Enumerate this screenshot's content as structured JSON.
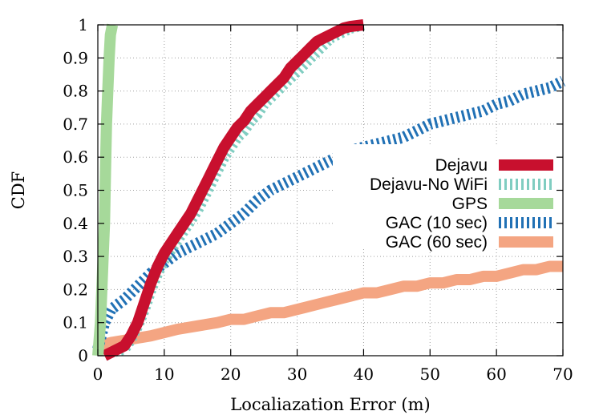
{
  "chart_data": {
    "type": "line",
    "xlabel": "Localiazation Error (m)",
    "ylabel": "CDF",
    "xlim": [
      0,
      70
    ],
    "ylim": [
      0,
      1
    ],
    "xticks": [
      "0",
      "10",
      "20",
      "30",
      "40",
      "50",
      "60",
      "70"
    ],
    "yticks": [
      "0",
      "0.1",
      "0.2",
      "0.3",
      "0.4",
      "0.5",
      "0.6",
      "0.7",
      "0.8",
      "0.9",
      "1"
    ],
    "grid": true,
    "legend_position": "right",
    "series": [
      {
        "name": "Dejavu",
        "color": "#c8102e",
        "style": "solid-thick",
        "points": [
          [
            1,
            0
          ],
          [
            2,
            0.01
          ],
          [
            4,
            0.03
          ],
          [
            5,
            0.06
          ],
          [
            6,
            0.1
          ],
          [
            7,
            0.16
          ],
          [
            8,
            0.22
          ],
          [
            9,
            0.27
          ],
          [
            10,
            0.31
          ],
          [
            11,
            0.34
          ],
          [
            12,
            0.37
          ],
          [
            13,
            0.4
          ],
          [
            14,
            0.43
          ],
          [
            15,
            0.47
          ],
          [
            16,
            0.51
          ],
          [
            17,
            0.55
          ],
          [
            18,
            0.59
          ],
          [
            19,
            0.63
          ],
          [
            20,
            0.66
          ],
          [
            21,
            0.69
          ],
          [
            22,
            0.71
          ],
          [
            23,
            0.74
          ],
          [
            24,
            0.76
          ],
          [
            25,
            0.78
          ],
          [
            26,
            0.8
          ],
          [
            27,
            0.82
          ],
          [
            28,
            0.84
          ],
          [
            29,
            0.87
          ],
          [
            30,
            0.89
          ],
          [
            31,
            0.91
          ],
          [
            32,
            0.93
          ],
          [
            33,
            0.95
          ],
          [
            34,
            0.96
          ],
          [
            35,
            0.97
          ],
          [
            36,
            0.98
          ],
          [
            37,
            0.99
          ],
          [
            38,
            0.995
          ],
          [
            40,
            1
          ]
        ]
      },
      {
        "name": "Dejavu-No WiFi",
        "color": "#80cdc1",
        "style": "hatched",
        "points": [
          [
            1,
            0
          ],
          [
            2,
            0.01
          ],
          [
            4,
            0.02
          ],
          [
            5,
            0.05
          ],
          [
            6,
            0.09
          ],
          [
            7,
            0.14
          ],
          [
            8,
            0.2
          ],
          [
            9,
            0.25
          ],
          [
            10,
            0.29
          ],
          [
            11,
            0.32
          ],
          [
            12,
            0.35
          ],
          [
            13,
            0.38
          ],
          [
            14,
            0.41
          ],
          [
            15,
            0.44
          ],
          [
            16,
            0.48
          ],
          [
            17,
            0.52
          ],
          [
            18,
            0.56
          ],
          [
            19,
            0.6
          ],
          [
            20,
            0.63
          ],
          [
            21,
            0.66
          ],
          [
            22,
            0.68
          ],
          [
            23,
            0.71
          ],
          [
            24,
            0.73
          ],
          [
            25,
            0.76
          ],
          [
            26,
            0.78
          ],
          [
            27,
            0.8
          ],
          [
            28,
            0.82
          ],
          [
            29,
            0.84
          ],
          [
            30,
            0.86
          ],
          [
            31,
            0.88
          ],
          [
            32,
            0.9
          ],
          [
            33,
            0.92
          ],
          [
            34,
            0.94
          ],
          [
            35,
            0.96
          ],
          [
            36,
            0.97
          ],
          [
            37,
            0.98
          ],
          [
            38,
            0.99
          ],
          [
            40,
            1
          ]
        ]
      },
      {
        "name": "GPS",
        "color": "#a6d99a",
        "style": "solid-thick",
        "points": [
          [
            0,
            0
          ],
          [
            0.2,
            0.05
          ],
          [
            0.4,
            0.1
          ],
          [
            0.6,
            0.2
          ],
          [
            0.8,
            0.3
          ],
          [
            1,
            0.4
          ],
          [
            1.1,
            0.5
          ],
          [
            1.2,
            0.6
          ],
          [
            1.3,
            0.7
          ],
          [
            1.5,
            0.8
          ],
          [
            1.7,
            0.9
          ],
          [
            1.9,
            0.97
          ],
          [
            2.2,
            1
          ]
        ]
      },
      {
        "name": "GAC (10 sec)",
        "color": "#2171b5",
        "style": "hatched",
        "points": [
          [
            0,
            0.02
          ],
          [
            0.5,
            0.06
          ],
          [
            1,
            0.1
          ],
          [
            2,
            0.14
          ],
          [
            4,
            0.17
          ],
          [
            6,
            0.21
          ],
          [
            8,
            0.25
          ],
          [
            10,
            0.28
          ],
          [
            12,
            0.31
          ],
          [
            14,
            0.33
          ],
          [
            16,
            0.35
          ],
          [
            18,
            0.37
          ],
          [
            20,
            0.4
          ],
          [
            22,
            0.43
          ],
          [
            24,
            0.47
          ],
          [
            26,
            0.5
          ],
          [
            28,
            0.52
          ],
          [
            30,
            0.54
          ],
          [
            32,
            0.56
          ],
          [
            34,
            0.58
          ],
          [
            36,
            0.6
          ],
          [
            38,
            0.62
          ],
          [
            40,
            0.63
          ],
          [
            42,
            0.64
          ],
          [
            44,
            0.65
          ],
          [
            46,
            0.66
          ],
          [
            48,
            0.68
          ],
          [
            50,
            0.7
          ],
          [
            52,
            0.71
          ],
          [
            54,
            0.72
          ],
          [
            56,
            0.73
          ],
          [
            58,
            0.74
          ],
          [
            60,
            0.76
          ],
          [
            62,
            0.77
          ],
          [
            64,
            0.79
          ],
          [
            66,
            0.8
          ],
          [
            68,
            0.81
          ],
          [
            70,
            0.83
          ]
        ]
      },
      {
        "name": "GAC (60 sec)",
        "color": "#f4a582",
        "style": "solid-thick",
        "points": [
          [
            0,
            0.03
          ],
          [
            2,
            0.04
          ],
          [
            5,
            0.05
          ],
          [
            8,
            0.06
          ],
          [
            10,
            0.07
          ],
          [
            12,
            0.08
          ],
          [
            15,
            0.09
          ],
          [
            18,
            0.1
          ],
          [
            20,
            0.11
          ],
          [
            22,
            0.11
          ],
          [
            24,
            0.12
          ],
          [
            26,
            0.13
          ],
          [
            28,
            0.13
          ],
          [
            30,
            0.14
          ],
          [
            32,
            0.15
          ],
          [
            34,
            0.16
          ],
          [
            36,
            0.17
          ],
          [
            38,
            0.18
          ],
          [
            40,
            0.19
          ],
          [
            42,
            0.19
          ],
          [
            44,
            0.2
          ],
          [
            46,
            0.21
          ],
          [
            48,
            0.21
          ],
          [
            50,
            0.22
          ],
          [
            52,
            0.22
          ],
          [
            54,
            0.23
          ],
          [
            56,
            0.23
          ],
          [
            58,
            0.24
          ],
          [
            60,
            0.24
          ],
          [
            62,
            0.25
          ],
          [
            64,
            0.26
          ],
          [
            66,
            0.26
          ],
          [
            68,
            0.27
          ],
          [
            70,
            0.27
          ]
        ]
      }
    ]
  }
}
